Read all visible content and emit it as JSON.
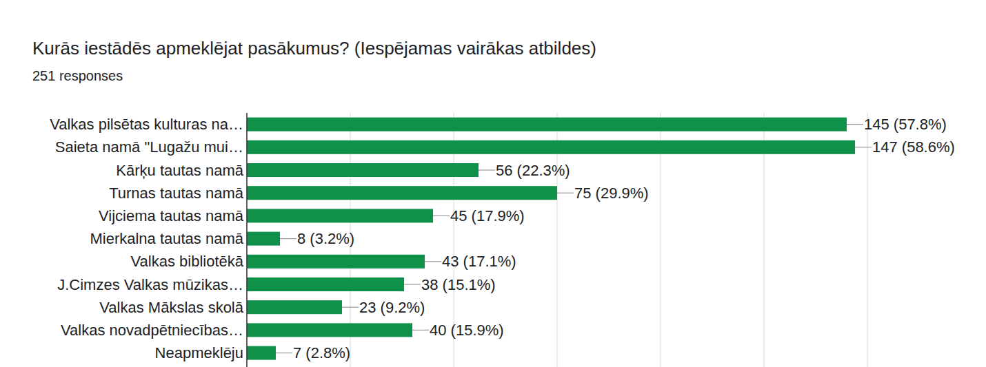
{
  "chart_data": {
    "type": "bar",
    "orientation": "horizontal",
    "title": "Kurās iestādēs apmeklējat pasākumus? (Iespējamas vairākas atbildes)",
    "subtitle": "251 responses",
    "categories": [
      "Valkas pilsētas kulturas na…",
      "Saieta namā \"Lugažu mui…",
      "Kārķu tautas namā",
      "Turnas tautas namā",
      "Vijciema tautas namā",
      "Mierkalna tautas namā",
      "Valkas bibliotēkā",
      "J.Cimzes Valkas mūzikas…",
      "Valkas Mākslas skolā",
      "Valkas novadpētniecības…",
      "Neapmeklēju"
    ],
    "values": [
      145,
      147,
      56,
      75,
      45,
      8,
      43,
      38,
      23,
      40,
      7
    ],
    "value_labels": [
      "145 (57.8%)",
      "147 (58.6%)",
      "56 (22.3%)",
      "75 (29.9%)",
      "45 (17.9%)",
      "8 (3.2%)",
      "43 (17.1%)",
      "38 (15.1%)",
      "23 (9.2%)",
      "40 (15.9%)",
      "7 (2.8%)"
    ],
    "color": "#0f9149",
    "xlim": [
      0,
      150
    ],
    "xticks": [
      0,
      25,
      50,
      75,
      100,
      125,
      150
    ],
    "grid": true,
    "data_labels": true,
    "tick_labels": "y"
  }
}
